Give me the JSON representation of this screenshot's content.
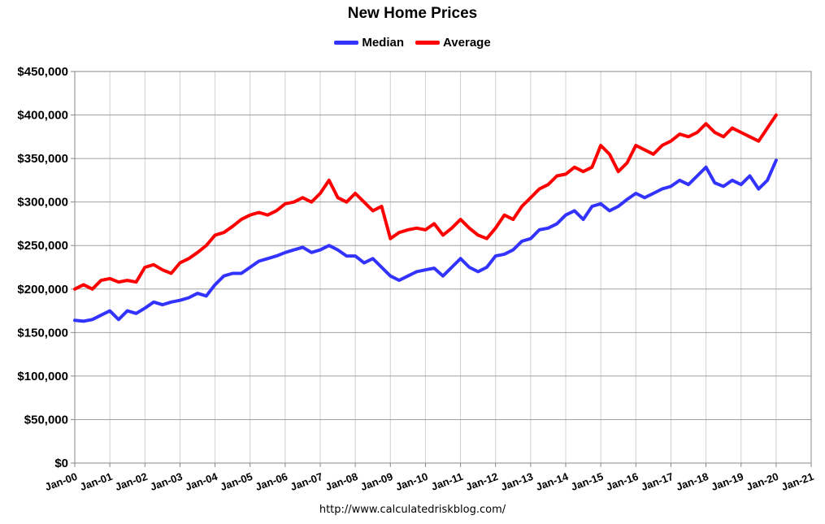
{
  "chart_data": {
    "type": "line",
    "title": "New Home Prices",
    "source": "http://www.calculatedriskblog.com/",
    "xlabel": "",
    "ylabel": "",
    "ylim": [
      0,
      450000
    ],
    "xlim": [
      "Jan-00",
      "Jan-21"
    ],
    "x_ticks": [
      "Jan-00",
      "Jan-01",
      "Jan-02",
      "Jan-03",
      "Jan-04",
      "Jan-05",
      "Jan-06",
      "Jan-07",
      "Jan-08",
      "Jan-09",
      "Jan-10",
      "Jan-11",
      "Jan-12",
      "Jan-13",
      "Jan-14",
      "Jan-15",
      "Jan-16",
      "Jan-17",
      "Jan-18",
      "Jan-19",
      "Jan-20",
      "Jan-21"
    ],
    "y_ticks": [
      "$0",
      "$50,000",
      "$100,000",
      "$150,000",
      "$200,000",
      "$250,000",
      "$300,000",
      "$350,000",
      "$400,000",
      "$450,000"
    ],
    "y_tick_values": [
      0,
      50000,
      100000,
      150000,
      200000,
      250000,
      300000,
      350000,
      400000,
      450000
    ],
    "grid": true,
    "legend_position": "top-center",
    "x_start": "Jan-00",
    "series": [
      {
        "name": "Median",
        "color": "#3333ff",
        "x_start": "Jan-00",
        "frequency": "quarterly",
        "values": [
          164000,
          163000,
          165000,
          170000,
          175000,
          165000,
          175000,
          172000,
          178000,
          185000,
          182000,
          185000,
          187000,
          190000,
          195000,
          192000,
          205000,
          215000,
          218000,
          218000,
          225000,
          232000,
          235000,
          238000,
          242000,
          245000,
          248000,
          242000,
          245000,
          250000,
          245000,
          238000,
          238000,
          230000,
          235000,
          225000,
          215000,
          210000,
          215000,
          220000,
          222000,
          224000,
          215000,
          225000,
          235000,
          225000,
          220000,
          225000,
          238000,
          240000,
          245000,
          255000,
          258000,
          268000,
          270000,
          275000,
          285000,
          290000,
          280000,
          295000,
          298000,
          290000,
          295000,
          303000,
          310000,
          305000,
          310000,
          315000,
          318000,
          325000,
          320000,
          330000,
          340000,
          322000,
          318000,
          325000,
          320000,
          330000,
          315000,
          325000,
          348000
        ]
      },
      {
        "name": "Average",
        "color": "#ff0000",
        "x_start": "Jan-00",
        "frequency": "quarterly",
        "values": [
          200000,
          205000,
          200000,
          210000,
          212000,
          208000,
          210000,
          208000,
          225000,
          228000,
          222000,
          218000,
          230000,
          235000,
          242000,
          250000,
          262000,
          265000,
          272000,
          280000,
          285000,
          288000,
          285000,
          290000,
          298000,
          300000,
          305000,
          300000,
          310000,
          325000,
          305000,
          300000,
          310000,
          300000,
          290000,
          295000,
          258000,
          265000,
          268000,
          270000,
          268000,
          275000,
          262000,
          270000,
          280000,
          270000,
          262000,
          258000,
          270000,
          285000,
          280000,
          295000,
          305000,
          315000,
          320000,
          330000,
          332000,
          340000,
          335000,
          340000,
          365000,
          355000,
          335000,
          345000,
          365000,
          360000,
          355000,
          365000,
          370000,
          378000,
          375000,
          380000,
          390000,
          380000,
          375000,
          385000,
          380000,
          375000,
          370000,
          385000,
          400000
        ]
      }
    ]
  }
}
